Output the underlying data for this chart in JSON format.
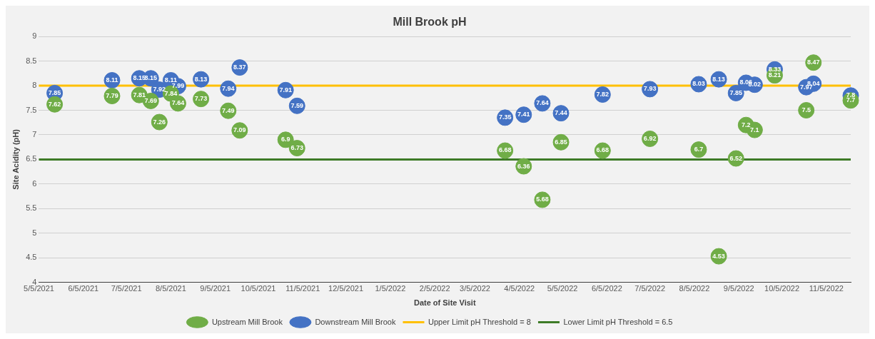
{
  "chart_data": {
    "type": "scatter",
    "title": "Mill Brook pH",
    "xlabel": "Date of Site Visit",
    "ylabel": "Site Acidity (pH)",
    "x": [
      "2021-05-16",
      "2021-06-25",
      "2021-07-14",
      "2021-07-22",
      "2021-07-28",
      "2021-08-05",
      "2021-08-10",
      "2021-08-26",
      "2021-09-14",
      "2021-09-22",
      "2021-10-24",
      "2021-11-01",
      "2022-03-26",
      "2022-04-08",
      "2022-04-21",
      "2022-05-04",
      "2022-06-02",
      "2022-07-05",
      "2022-08-08",
      "2022-08-22",
      "2022-09-03",
      "2022-09-10",
      "2022-09-16",
      "2022-09-30",
      "2022-10-22",
      "2022-10-27",
      "2022-11-22"
    ],
    "series": [
      {
        "name": "Upstream Mill Brook",
        "color": "#70ad47",
        "values": [
          7.62,
          7.79,
          7.81,
          7.69,
          7.26,
          7.84,
          7.64,
          7.73,
          7.49,
          7.09,
          6.9,
          6.73,
          6.68,
          6.36,
          5.68,
          6.85,
          6.68,
          6.92,
          6.7,
          4.53,
          6.52,
          7.2,
          7.1,
          8.21,
          7.5,
          8.47,
          7.7
        ]
      },
      {
        "name": "Downstream Mill Brook",
        "color": "#4472c4",
        "values": [
          7.85,
          8.11,
          8.15,
          8.15,
          7.92,
          8.11,
          7.99,
          8.13,
          7.94,
          8.37,
          7.91,
          7.59,
          7.35,
          7.41,
          7.64,
          7.44,
          7.82,
          7.93,
          8.03,
          8.13,
          7.85,
          8.06,
          8.02,
          8.33,
          7.97,
          8.04,
          7.8
        ]
      }
    ],
    "ref_lines": [
      {
        "axis": "y",
        "value": 8,
        "label": "Upper Limit pH Threshold = 8",
        "color": "#ffc000"
      },
      {
        "axis": "y",
        "value": 6.5,
        "label": "Lower Limit pH Threshold = 6.5",
        "color": "#3e7b27"
      }
    ],
    "xlim": [
      "2021-05-05",
      "2022-11-22"
    ],
    "xticks": [
      {
        "value": "2021-05-05",
        "label": "5/5/2021"
      },
      {
        "value": "2021-06-05",
        "label": "6/5/2021"
      },
      {
        "value": "2021-07-05",
        "label": "7/5/2021"
      },
      {
        "value": "2021-08-05",
        "label": "8/5/2021"
      },
      {
        "value": "2021-09-05",
        "label": "9/5/2021"
      },
      {
        "value": "2021-10-05",
        "label": "10/5/2021"
      },
      {
        "value": "2021-11-05",
        "label": "11/5/2021"
      },
      {
        "value": "2021-12-05",
        "label": "12/5/2021"
      },
      {
        "value": "2022-01-05",
        "label": "1/5/2022"
      },
      {
        "value": "2022-02-05",
        "label": "2/5/2022"
      },
      {
        "value": "2022-03-05",
        "label": "3/5/2022"
      },
      {
        "value": "2022-04-05",
        "label": "4/5/2022"
      },
      {
        "value": "2022-05-05",
        "label": "5/5/2022"
      },
      {
        "value": "2022-06-05",
        "label": "6/5/2022"
      },
      {
        "value": "2022-07-05",
        "label": "7/5/2022"
      },
      {
        "value": "2022-08-05",
        "label": "8/5/2022"
      },
      {
        "value": "2022-09-05",
        "label": "9/5/2022"
      },
      {
        "value": "2022-10-05",
        "label": "10/5/2022"
      },
      {
        "value": "2022-11-05",
        "label": "11/5/2022"
      }
    ],
    "ylim": [
      4,
      9
    ],
    "yticks": [
      4,
      4.5,
      5,
      5.5,
      6,
      6.5,
      7,
      7.5,
      8,
      8.5,
      9
    ],
    "grid": "y",
    "legend": "bottom",
    "marker": "circle",
    "data_labels": true
  }
}
